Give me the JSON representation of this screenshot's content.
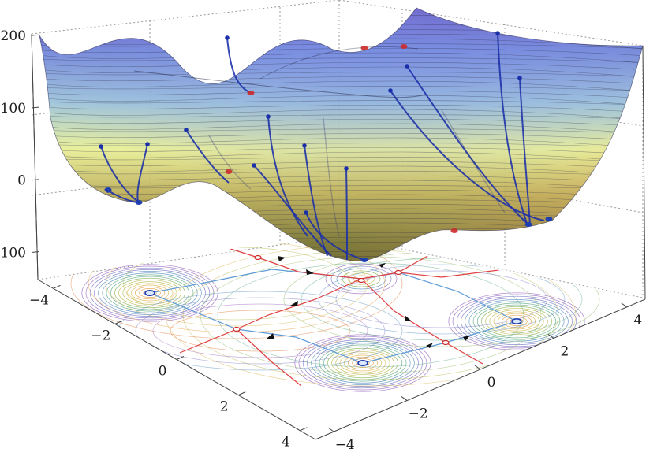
{
  "chart_data": {
    "type": "surface",
    "title": "",
    "surface": {
      "x_range": [
        -4.5,
        4.5
      ],
      "y_range": [
        -4.5,
        4.5
      ],
      "z_range": [
        -130,
        210
      ],
      "colormap": [
        "#3a1f9e",
        "#5a55c8",
        "#8fb6e0",
        "#f3f08a",
        "#c9a24a",
        "#6e6a1e"
      ]
    },
    "axes": {
      "z": {
        "ticks": [
          {
            "value": 200,
            "label": "200"
          },
          {
            "value": 100,
            "label": "100"
          },
          {
            "value": 0,
            "label": "0"
          },
          {
            "value": -100,
            "label": "−100"
          }
        ]
      },
      "left": {
        "ticks": [
          {
            "value": -4,
            "label": "−4"
          },
          {
            "value": -2,
            "label": "−2"
          },
          {
            "value": 0,
            "label": "0"
          },
          {
            "value": 2,
            "label": "2"
          },
          {
            "value": 4,
            "label": "4"
          }
        ]
      },
      "right": {
        "ticks": [
          {
            "value": -4,
            "label": "−4"
          },
          {
            "value": -2,
            "label": "−2"
          },
          {
            "value": 0,
            "label": "0"
          },
          {
            "value": 2,
            "label": "2"
          },
          {
            "value": 4,
            "label": "4"
          }
        ]
      }
    },
    "minima": [
      {
        "x": 3.0,
        "y": 2.0,
        "z": -120
      },
      {
        "x": -2.8,
        "y": 3.1,
        "z": -120
      },
      {
        "x": -3.8,
        "y": -3.3,
        "z": -120
      },
      {
        "x": 3.6,
        "y": -1.9,
        "z": -120
      }
    ],
    "saddles": [
      {
        "x": -0.8,
        "y": -1.9,
        "z": -101
      },
      {
        "x": -3.0,
        "y": 0.0,
        "z": -100
      },
      {
        "x": 3.4,
        "y": 0.0,
        "z": -80
      },
      {
        "x": 0.0,
        "y": -0.4,
        "z": -70
      },
      {
        "x": 0.1,
        "y": 2.7,
        "z": -70
      }
    ],
    "maximum": {
      "x": -0.3,
      "y": -0.9,
      "z": 180
    },
    "grid": true,
    "gradient_paths": true
  },
  "colors": {
    "minimum_marker": "#1f3fb0",
    "critical_marker": "#cc2a2a",
    "path_color": "#1a2fa8",
    "separatrix_color": "#e04040",
    "valley_line_color": "#5d9ad6"
  }
}
